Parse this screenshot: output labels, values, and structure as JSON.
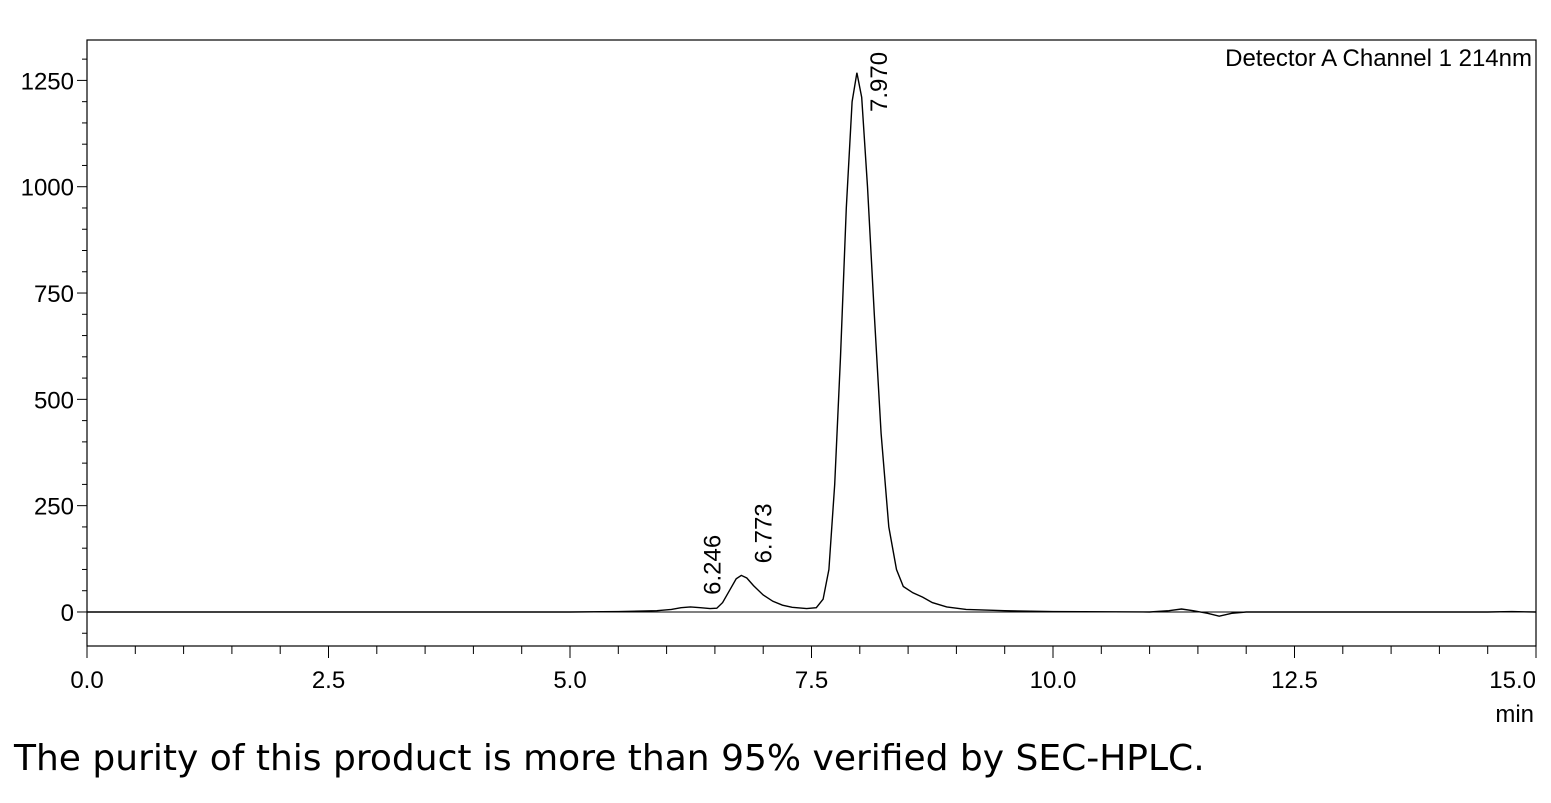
{
  "chart_data": {
    "type": "line",
    "title": "",
    "xlabel": "min",
    "ylabel": "",
    "xlim": [
      0,
      15
    ],
    "ylim": [
      -80,
      1345
    ],
    "x_ticks": [
      "0.0",
      "2.5",
      "5.0",
      "7.5",
      "10.0",
      "12.5",
      "15.0"
    ],
    "y_ticks": [
      "0",
      "250",
      "500",
      "750",
      "1000",
      "1250"
    ],
    "grid": false,
    "legend": "top-right",
    "series": [
      {
        "name": "Detector A Channel 1 214nm",
        "color": "#000000",
        "points": [
          [
            0.0,
            0
          ],
          [
            5.0,
            0
          ],
          [
            5.5,
            1
          ],
          [
            5.9,
            3
          ],
          [
            6.05,
            6
          ],
          [
            6.15,
            10
          ],
          [
            6.246,
            12
          ],
          [
            6.35,
            10
          ],
          [
            6.45,
            8
          ],
          [
            6.52,
            9
          ],
          [
            6.58,
            22
          ],
          [
            6.65,
            50
          ],
          [
            6.72,
            78
          ],
          [
            6.773,
            86
          ],
          [
            6.83,
            80
          ],
          [
            6.9,
            62
          ],
          [
            7.0,
            40
          ],
          [
            7.1,
            25
          ],
          [
            7.2,
            16
          ],
          [
            7.3,
            11
          ],
          [
            7.45,
            8
          ],
          [
            7.55,
            10
          ],
          [
            7.62,
            30
          ],
          [
            7.68,
            100
          ],
          [
            7.74,
            300
          ],
          [
            7.8,
            600
          ],
          [
            7.86,
            950
          ],
          [
            7.92,
            1200
          ],
          [
            7.97,
            1268
          ],
          [
            8.02,
            1210
          ],
          [
            8.08,
            1000
          ],
          [
            8.15,
            700
          ],
          [
            8.22,
            420
          ],
          [
            8.3,
            200
          ],
          [
            8.38,
            100
          ],
          [
            8.45,
            60
          ],
          [
            8.55,
            45
          ],
          [
            8.65,
            35
          ],
          [
            8.75,
            22
          ],
          [
            8.9,
            12
          ],
          [
            9.1,
            6
          ],
          [
            9.5,
            3
          ],
          [
            10.0,
            1
          ],
          [
            11.0,
            0
          ],
          [
            11.2,
            3
          ],
          [
            11.33,
            7
          ],
          [
            11.45,
            3
          ],
          [
            11.6,
            -3
          ],
          [
            11.72,
            -10
          ],
          [
            11.85,
            -3
          ],
          [
            12.0,
            0
          ],
          [
            14.5,
            0
          ],
          [
            14.75,
            1
          ],
          [
            15.0,
            0
          ]
        ]
      }
    ],
    "annotations": [
      {
        "text": "6.246",
        "x": 6.246,
        "y": 12
      },
      {
        "text": "6.773",
        "x": 6.773,
        "y": 86
      },
      {
        "text": "7.970",
        "x": 7.97,
        "y": 1268
      }
    ]
  },
  "caption": "The purity of this product is more than 95% verified by SEC-HPLC."
}
